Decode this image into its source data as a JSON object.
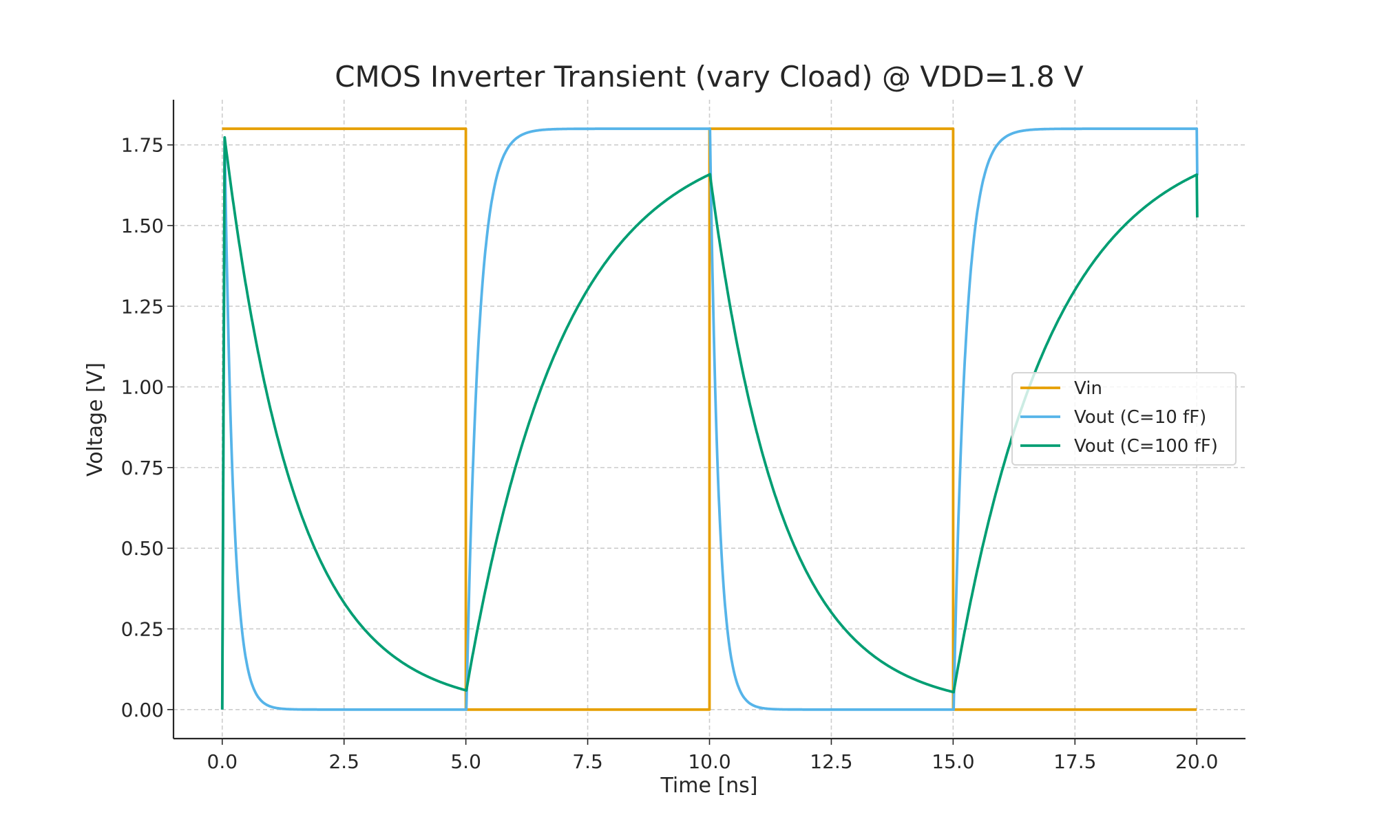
{
  "chart_data": {
    "type": "line",
    "title": "CMOS Inverter Transient (vary Cload) @ VDD=1.8 V",
    "xlabel": "Time [ns]",
    "ylabel": "Voltage [V]",
    "xlim": [
      -1.0,
      21.0
    ],
    "ylim": [
      -0.09,
      1.89
    ],
    "xticks": [
      0.0,
      2.5,
      5.0,
      7.5,
      10.0,
      12.5,
      15.0,
      17.5,
      20.0
    ],
    "xtick_labels": [
      "0.0",
      "2.5",
      "5.0",
      "7.5",
      "10.0",
      "12.5",
      "15.0",
      "17.5",
      "20.0"
    ],
    "yticks": [
      0.0,
      0.25,
      0.5,
      0.75,
      1.0,
      1.25,
      1.5,
      1.75
    ],
    "ytick_labels": [
      "0.00",
      "0.25",
      "0.50",
      "0.75",
      "1.00",
      "1.25",
      "1.50",
      "1.75"
    ],
    "grid": true,
    "legend_position": "center-right",
    "vdd": 1.8,
    "period_ns": 10,
    "t_end_ns": 20,
    "series": [
      {
        "name": "Vin",
        "color": "#E69F00",
        "kind": "square"
      },
      {
        "name": "Vout (C=10 fF)",
        "color": "#56B4E9",
        "kind": "rc",
        "tau_fall_ns": 0.18,
        "tau_rise_ns": 0.25
      },
      {
        "name": "Vout (C=100 fF)",
        "color": "#009E73",
        "kind": "rc",
        "tau_fall_ns": 1.46,
        "tau_rise_ns": 1.99
      }
    ]
  }
}
